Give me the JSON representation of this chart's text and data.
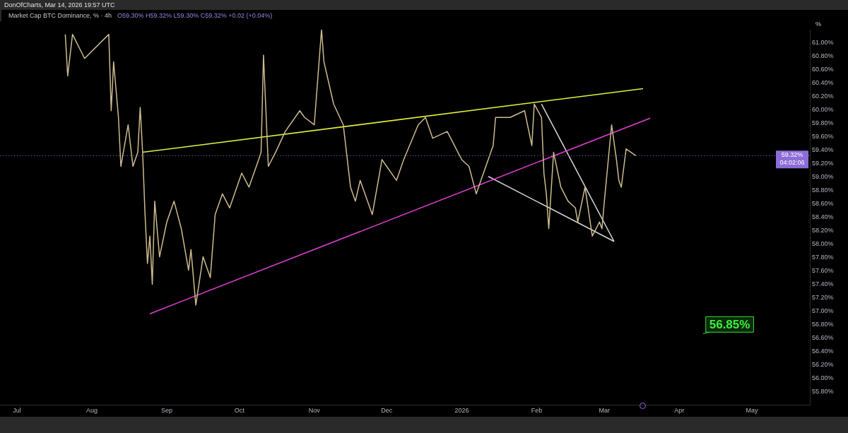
{
  "chart_data": {
    "type": "line",
    "title": "Market Cap BTC Dominance, % · 4h",
    "subtitle": "O59.30% H59.32% L59.30% C59.32% +0.02 (+0.04%)",
    "ylabel": "%",
    "annotations": [
      "DonOfCharts, Mar 14, 2026 19:57 UTC",
      "04:02:06",
      "56.85%"
    ],
    "xlim": [
      "2025-06-24",
      "2026-05-25"
    ],
    "ylim": [
      55.6,
      61.2
    ],
    "xticks": [
      {
        "value": "2025-07-01",
        "label": "Jul"
      },
      {
        "value": "2025-08-01",
        "label": "Aug"
      },
      {
        "value": "2025-09-01",
        "label": "Sep"
      },
      {
        "value": "2025-10-01",
        "label": "Oct"
      },
      {
        "value": "2025-11-01",
        "label": "Nov"
      },
      {
        "value": "2025-12-01",
        "label": "Dec"
      },
      {
        "value": "2026-01-01",
        "label": "2026"
      },
      {
        "value": "2026-02-01",
        "label": "Feb"
      },
      {
        "value": "2026-03-01",
        "label": "Mar"
      },
      {
        "value": "2026-04-01",
        "label": "Apr"
      },
      {
        "value": "2026-05-01",
        "label": "May"
      }
    ],
    "yticks": [
      {
        "value": 55.8,
        "label": "55.80%"
      },
      {
        "value": 56.0,
        "label": "56.00%"
      },
      {
        "value": 56.2,
        "label": "56.20%"
      },
      {
        "value": 56.4,
        "label": "56.40%"
      },
      {
        "value": 56.6,
        "label": "56.60%"
      },
      {
        "value": 56.8,
        "label": "56.80%"
      },
      {
        "value": 57.0,
        "label": "57.00%"
      },
      {
        "value": 57.2,
        "label": "57.20%"
      },
      {
        "value": 57.4,
        "label": "57.40%"
      },
      {
        "value": 57.6,
        "label": "57.60%"
      },
      {
        "value": 57.8,
        "label": "57.80%"
      },
      {
        "value": 58.0,
        "label": "58.00%"
      },
      {
        "value": 58.2,
        "label": "58.20%"
      },
      {
        "value": 58.4,
        "label": "58.40%"
      },
      {
        "value": 58.6,
        "label": "58.60%"
      },
      {
        "value": 58.8,
        "label": "58.80%"
      },
      {
        "value": 59.0,
        "label": "59.00%"
      },
      {
        "value": 59.2,
        "label": "59.20%"
      },
      {
        "value": 59.4,
        "label": "59.40%"
      },
      {
        "value": 59.6,
        "label": "59.60%"
      },
      {
        "value": 59.8,
        "label": "59.80%"
      },
      {
        "value": 60.0,
        "label": "60.00%"
      },
      {
        "value": 60.2,
        "label": "60.20%"
      },
      {
        "value": 60.4,
        "label": "60.40%"
      },
      {
        "value": 60.6,
        "label": "60.60%"
      },
      {
        "value": 60.8,
        "label": "60.80%"
      },
      {
        "value": 61.0,
        "label": "61.00%"
      }
    ],
    "grid": false,
    "legend": false,
    "marker": "none",
    "ref_lines": [
      {
        "axis": "y",
        "value": 59.32,
        "label": "59.32%",
        "color": "#8c6cd8",
        "line_style": "dotted"
      }
    ],
    "series": [
      {
        "color": "#cdbb8e",
        "x": [
          "2025-07-21",
          "2025-07-22",
          "2025-07-24",
          "2025-07-29",
          "2025-08-08",
          "2025-08-09",
          "2025-08-10",
          "2025-08-12",
          "2025-08-13",
          "2025-08-16",
          "2025-08-18",
          "2025-08-20",
          "2025-08-21",
          "2025-08-22",
          "2025-08-23",
          "2025-08-24",
          "2025-08-25",
          "2025-08-26",
          "2025-08-27",
          "2025-08-29",
          "2025-09-01",
          "2025-09-04",
          "2025-09-07",
          "2025-09-10",
          "2025-09-11",
          "2025-09-13",
          "2025-09-16",
          "2025-09-19",
          "2025-09-21",
          "2025-09-24",
          "2025-09-27",
          "2025-10-02",
          "2025-10-05",
          "2025-10-09",
          "2025-10-10",
          "2025-10-11",
          "2025-10-13",
          "2025-10-16",
          "2025-10-20",
          "2025-10-26",
          "2025-10-28",
          "2025-11-01",
          "2025-11-04",
          "2025-11-05",
          "2025-11-09",
          "2025-11-13",
          "2025-11-16",
          "2025-11-18",
          "2025-11-20",
          "2025-11-25",
          "2025-11-29",
          "2025-12-05",
          "2025-12-08",
          "2025-12-14",
          "2025-12-17",
          "2025-12-20",
          "2025-12-26",
          "2026-01-01",
          "2026-01-04",
          "2026-01-07",
          "2026-01-10",
          "2026-01-14",
          "2026-01-15",
          "2026-01-21",
          "2026-01-27",
          "2026-01-30",
          "2026-01-31",
          "2026-02-03",
          "2026-02-04",
          "2026-02-05",
          "2026-02-06",
          "2026-02-08",
          "2026-02-11",
          "2026-02-14",
          "2026-02-17",
          "2026-02-18",
          "2026-02-21",
          "2026-02-24",
          "2026-02-27",
          "2026-02-28",
          "2026-03-01",
          "2026-03-04",
          "2026-03-06",
          "2026-03-07",
          "2026-03-08",
          "2026-03-10",
          "2026-03-12",
          "2026-03-14"
        ],
        "values": [
          61.13,
          60.51,
          61.13,
          60.77,
          61.13,
          59.99,
          60.72,
          59.89,
          59.16,
          59.78,
          59.16,
          59.37,
          60.04,
          59.37,
          58.44,
          57.71,
          58.12,
          57.4,
          58.64,
          57.81,
          58.33,
          58.64,
          58.23,
          57.61,
          57.92,
          57.09,
          57.81,
          57.5,
          58.44,
          58.75,
          58.54,
          59.06,
          58.85,
          59.26,
          59.37,
          60.82,
          59.16,
          59.37,
          59.68,
          59.99,
          59.89,
          59.78,
          61.2,
          60.72,
          60.09,
          59.78,
          58.85,
          58.64,
          58.95,
          58.44,
          59.26,
          58.95,
          59.26,
          59.78,
          59.89,
          59.58,
          59.68,
          59.26,
          59.16,
          58.75,
          59.06,
          59.47,
          59.89,
          59.89,
          59.99,
          59.47,
          60.09,
          59.89,
          59.06,
          58.75,
          58.23,
          59.37,
          58.85,
          58.64,
          58.54,
          58.33,
          58.85,
          58.12,
          58.33,
          58.23,
          58.64,
          59.78,
          59.26,
          58.95,
          58.85,
          59.42,
          59.37,
          59.32
        ]
      },
      {
        "color": "#e3f03c",
        "x": [
          "2025-08-22",
          "2026-03-17"
        ],
        "values": [
          59.37,
          60.32
        ]
      },
      {
        "color": "#e040d0",
        "x": [
          "2025-08-25",
          "2026-03-20"
        ],
        "values": [
          56.96,
          59.88
        ]
      },
      {
        "color": "#d8d8d8",
        "x": [
          "2026-02-03",
          "2026-03-05"
        ],
        "values": [
          60.09,
          58.04
        ]
      },
      {
        "color": "#d8d8d8",
        "x": [
          "2026-01-12",
          "2026-03-05"
        ],
        "values": [
          59.01,
          58.04
        ]
      }
    ]
  }
}
